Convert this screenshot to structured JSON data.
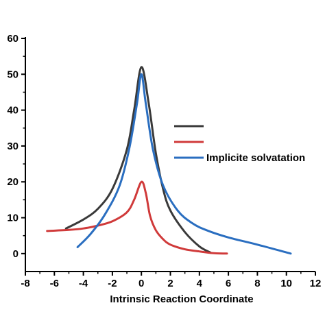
{
  "chart_data": {
    "type": "line",
    "xlabel": "Intrinsic Reaction Coordinate",
    "ylabel": "",
    "xlim": [
      -8,
      12
    ],
    "ylim": [
      -5,
      60
    ],
    "xticks": [
      -8,
      -6,
      -4,
      -2,
      0,
      2,
      4,
      6,
      8,
      10,
      12
    ],
    "yticks": [
      0,
      10,
      20,
      30,
      40,
      50,
      60
    ],
    "legend_position": "right",
    "series": [
      {
        "name": "",
        "color": "#3a3a3a",
        "x": [
          -5.2,
          -4.0,
          -3.0,
          -2.0,
          -1.0,
          -0.5,
          0.0,
          0.5,
          1.0,
          1.5,
          2.0,
          3.0,
          4.0,
          4.8
        ],
        "y": [
          7.0,
          9.5,
          12.5,
          18.0,
          29.0,
          40.0,
          52.0,
          42.0,
          28.0,
          18.0,
          12.0,
          6.0,
          2.0,
          0.2
        ]
      },
      {
        "name": "",
        "color": "#d03a3a",
        "x": [
          -6.5,
          -5.0,
          -4.0,
          -3.0,
          -2.0,
          -1.0,
          -0.5,
          0.0,
          0.3,
          0.6,
          1.0,
          1.5,
          2.0,
          3.0,
          4.0,
          5.0,
          5.9
        ],
        "y": [
          6.3,
          6.6,
          7.0,
          7.8,
          9.0,
          11.5,
          15.0,
          20.0,
          17.0,
          10.5,
          6.5,
          4.0,
          2.5,
          1.2,
          0.6,
          0.1,
          0.0
        ]
      },
      {
        "name": "Implicite solvatation",
        "color": "#2a6ec0",
        "x": [
          -4.4,
          -3.5,
          -2.5,
          -1.5,
          -0.8,
          -0.3,
          0.0,
          0.3,
          0.8,
          1.5,
          2.5,
          3.5,
          4.5,
          6.0,
          8.0,
          10.3
        ],
        "y": [
          1.8,
          5.5,
          11.0,
          19.0,
          30.0,
          42.0,
          50.0,
          42.0,
          29.0,
          19.0,
          12.0,
          8.5,
          6.5,
          4.5,
          2.5,
          0.0
        ]
      }
    ]
  }
}
